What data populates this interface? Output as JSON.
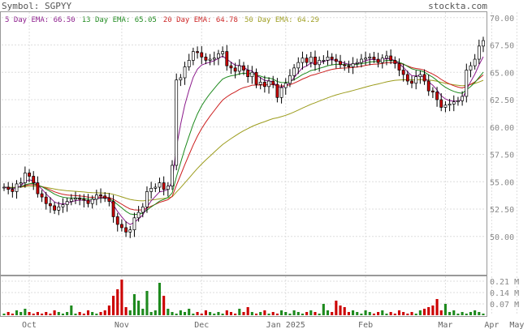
{
  "header": {
    "symbol_label": "Symbol: SGPYY",
    "site": "stockta.com"
  },
  "chart_data": {
    "type": "candlestick",
    "legend": [
      {
        "label": "5 Day EMA: 66.50",
        "color": "#8b1a8b"
      },
      {
        "label": "13 Day EMA: 65.05",
        "color": "#1e8a1e"
      },
      {
        "label": "20 Day EMA: 64.78",
        "color": "#cc1f1f"
      },
      {
        "label": "50 Day EMA: 64.29",
        "color": "#9c9c1c"
      }
    ],
    "ylim": [
      46.5,
      70.5
    ],
    "y_ticks": [
      {
        "value": 70,
        "label": "70.00"
      },
      {
        "value": 67.5,
        "label": "67.50"
      },
      {
        "value": 65,
        "label": "65.00"
      },
      {
        "value": 62.5,
        "label": "62.50"
      },
      {
        "value": 60,
        "label": "60.00"
      },
      {
        "value": 57.5,
        "label": "57.50"
      },
      {
        "value": 55,
        "label": "55.00"
      },
      {
        "value": 52.5,
        "label": "52.50"
      },
      {
        "value": 50,
        "label": "50.00"
      }
    ],
    "x_ticks": [
      {
        "index": 6,
        "label": "Oct"
      },
      {
        "index": 28,
        "label": "Nov"
      },
      {
        "index": 47,
        "label": "Dec"
      },
      {
        "index": 67,
        "label": "Jan 2025"
      },
      {
        "index": 86,
        "label": "Feb"
      },
      {
        "index": 105,
        "label": "Mar"
      },
      {
        "index": 116,
        "label": "Apr"
      },
      {
        "index": 122,
        "label": "May"
      }
    ],
    "volume_ylim": [
      0,
      0.24
    ],
    "volume_ticks": [
      {
        "value": 0.21,
        "label": "0.21 M"
      },
      {
        "value": 0.14,
        "label": "0.14 M"
      },
      {
        "value": 0.07,
        "label": "0.07 M"
      }
    ],
    "closes": [
      54.5,
      54.3,
      54.1,
      54.8,
      54.9,
      55.8,
      55.5,
      54.9,
      53.9,
      53.6,
      53.0,
      52.8,
      52.4,
      52.7,
      52.9,
      53.2,
      53.4,
      53.5,
      53.4,
      53.3,
      53.0,
      53.4,
      53.8,
      53.7,
      53.5,
      53.2,
      51.8,
      51.1,
      50.8,
      50.4,
      50.6,
      51.7,
      52.2,
      52.7,
      54.1,
      54.4,
      54.5,
      54.9,
      54.3,
      54.6,
      56.5,
      64.3,
      64.5,
      65.5,
      66.1,
      66.9,
      66.8,
      66.4,
      66.1,
      66.2,
      66.3,
      66.7,
      66.9,
      65.6,
      65.4,
      65.1,
      65.6,
      65.2,
      64.6,
      65.0,
      63.9,
      64.1,
      63.7,
      64.2,
      63.9,
      62.7,
      63.6,
      64.0,
      64.7,
      65.4,
      65.9,
      66.3,
      65.9,
      66.4,
      65.7,
      66.1,
      66.1,
      66.4,
      66.2,
      66.0,
      65.7,
      65.6,
      65.5,
      65.8,
      65.9,
      66.2,
      66.3,
      66.4,
      66.2,
      65.9,
      66.3,
      66.5,
      66.1,
      65.8,
      65.2,
      64.8,
      64.2,
      64.0,
      64.6,
      64.8,
      64.2,
      63.3,
      63.2,
      62.5,
      61.8,
      62.0,
      62.1,
      62.3,
      62.4,
      62.8,
      65.2,
      65.6,
      66.2,
      67.4,
      67.9
    ],
    "volumes": [
      0.01,
      0.02,
      0.01,
      0.03,
      0.02,
      0.04,
      0.02,
      0.01,
      0.02,
      0.01,
      0.02,
      0.01,
      0.03,
      0.02,
      0.01,
      0.02,
      0.06,
      0.01,
      0.02,
      0.01,
      0.03,
      0.02,
      0.01,
      0.02,
      0.03,
      0.06,
      0.12,
      0.16,
      0.22,
      0.05,
      0.03,
      0.13,
      0.09,
      0.04,
      0.15,
      0.02,
      0.03,
      0.2,
      0.12,
      0.04,
      0.02,
      0.01,
      0.03,
      0.02,
      0.04,
      0.01,
      0.02,
      0.01,
      0.03,
      0.02,
      0.01,
      0.02,
      0.01,
      0.03,
      0.02,
      0.01,
      0.04,
      0.02,
      0.05,
      0.02,
      0.01,
      0.02,
      0.03,
      0.01,
      0.02,
      0.01,
      0.03,
      0.02,
      0.01,
      0.03,
      0.02,
      0.01,
      0.02,
      0.03,
      0.02,
      0.01,
      0.07,
      0.03,
      0.02,
      0.09,
      0.06,
      0.05,
      0.02,
      0.03,
      0.02,
      0.01,
      0.03,
      0.02,
      0.01,
      0.02,
      0.03,
      0.01,
      0.02,
      0.01,
      0.03,
      0.02,
      0.01,
      0.02,
      0.01,
      0.03,
      0.04,
      0.05,
      0.06,
      0.1,
      0.03,
      0.07,
      0.02,
      0.03,
      0.01,
      0.02,
      0.01,
      0.02,
      0.03,
      0.02,
      0.01
    ]
  }
}
